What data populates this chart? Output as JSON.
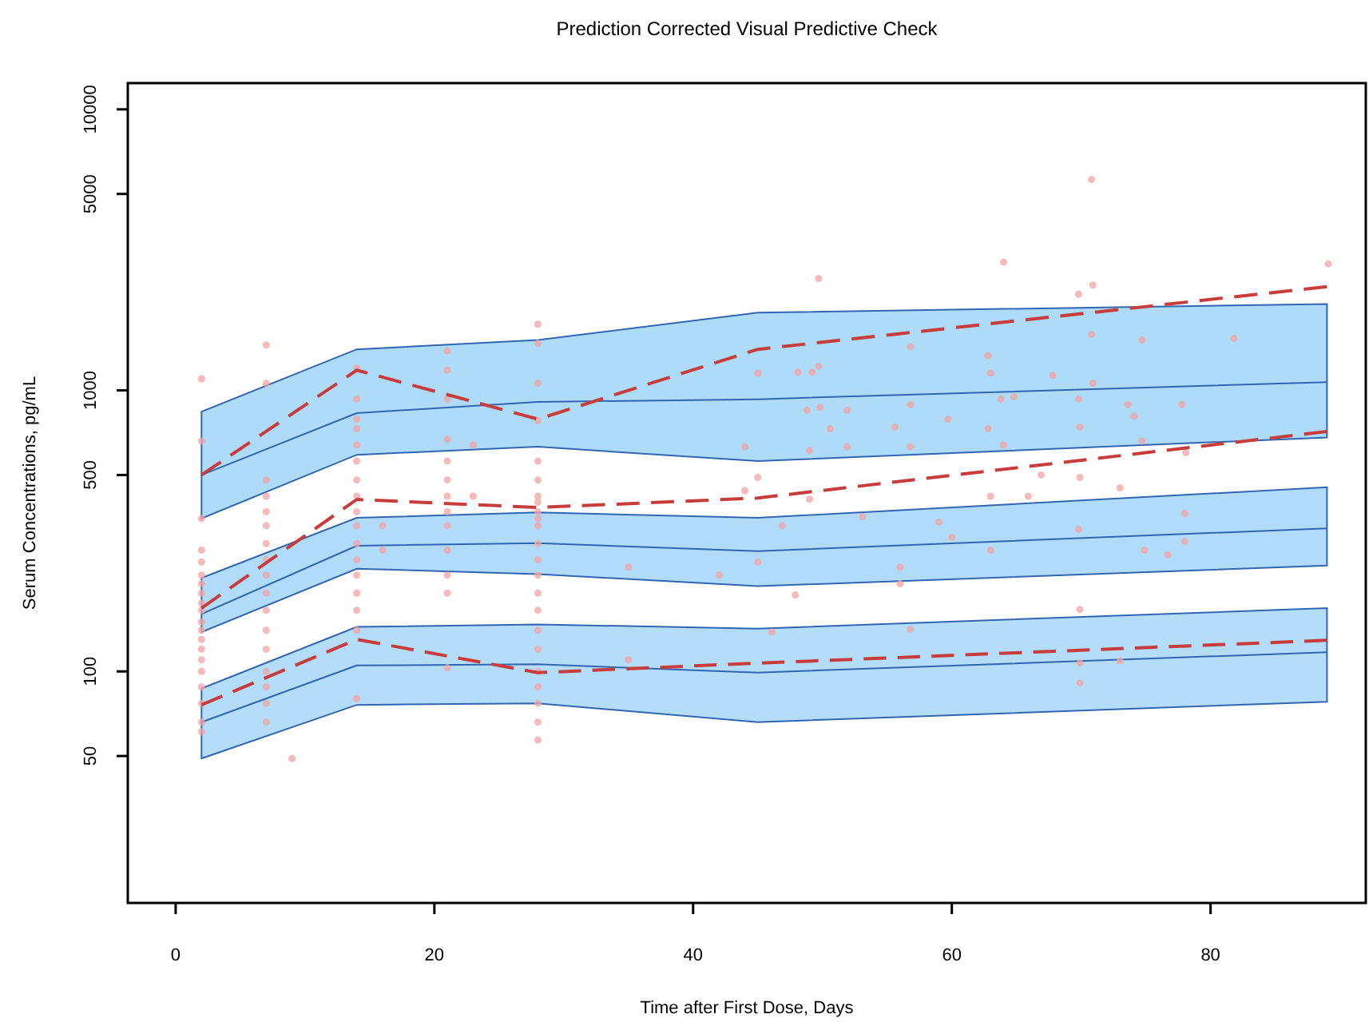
{
  "chart_data": {
    "type": "line",
    "title": "Prediction Corrected Visual Predictive Check",
    "xlabel": "Time after First Dose, Days",
    "ylabel": "Serum Concentrations, pg/mL",
    "log": "y",
    "grid": false,
    "xlim": [
      -3.7,
      92
    ],
    "ylim": [
      15,
      12400
    ],
    "xticks": [
      0,
      20,
      40,
      60,
      80
    ],
    "yticks": [
      50,
      100,
      500,
      1000,
      5000,
      10000
    ],
    "series": [
      {
        "type": "scatter",
        "color": "#f4a3a3",
        "marker": "circle",
        "x": [
          2,
          2,
          2,
          2,
          2,
          2,
          2,
          2,
          2,
          2,
          2,
          2,
          2,
          2,
          2,
          2,
          2,
          2,
          2,
          2,
          7,
          7,
          7,
          7,
          7,
          7,
          7,
          7,
          7,
          7,
          7,
          7,
          7,
          7,
          7,
          7,
          7,
          9,
          14,
          14,
          14,
          14,
          14,
          14,
          14,
          14,
          14,
          14,
          14,
          14,
          14,
          14,
          14,
          14,
          14,
          16,
          16,
          21,
          21,
          21,
          21,
          21,
          21,
          21,
          21,
          21,
          21,
          21,
          21,
          21,
          23,
          23,
          28,
          28,
          28,
          28,
          28,
          28,
          28,
          28,
          28,
          28,
          28,
          28,
          28,
          28,
          28,
          28,
          28,
          28,
          28,
          28,
          28,
          28,
          28,
          35,
          35,
          49.7,
          64,
          70.8,
          69.8,
          70.9,
          89.1,
          56.8,
          62.8,
          45,
          48.1,
          49.2,
          49.7,
          70.8,
          74.7,
          81.8,
          67.8,
          70.9,
          63,
          48.8,
          49.8,
          51.9,
          56.8,
          63.8,
          64.8,
          69.8,
          73.6,
          77.8,
          50.6,
          55.6,
          59.7,
          62.8,
          69.9,
          74.1,
          44,
          49,
          51.9,
          56.8,
          64,
          74.7,
          78.1,
          45,
          44,
          49,
          66.9,
          69.9,
          73,
          63,
          65.9,
          46.9,
          53.1,
          59,
          78,
          60,
          69.8,
          42,
          45,
          47.9,
          56,
          56,
          46.1,
          56.8,
          69.9,
          69.9,
          69.9,
          73,
          63,
          74.9,
          76.7,
          78
        ],
        "values": [
          1100,
          660,
          350,
          270,
          245,
          220,
          205,
          190,
          175,
          165,
          150,
          140,
          130,
          120,
          110,
          100,
          88,
          77,
          66,
          61,
          1450,
          1060,
          480,
          420,
          370,
          330,
          285,
          250,
          220,
          190,
          165,
          140,
          120,
          100,
          88,
          77,
          66,
          49,
          1200,
          930,
          790,
          730,
          640,
          560,
          480,
          420,
          370,
          330,
          285,
          250,
          220,
          190,
          165,
          140,
          80,
          330,
          270,
          1380,
          1180,
          930,
          670,
          560,
          480,
          420,
          370,
          330,
          270,
          220,
          190,
          103,
          640,
          420,
          1720,
          1470,
          1060,
          780,
          560,
          480,
          420,
          400,
          370,
          350,
          330,
          285,
          250,
          220,
          190,
          165,
          140,
          120,
          100,
          88,
          77,
          66,
          57,
          235,
          110,
          2500,
          2860,
          5630,
          2200,
          2370,
          2820,
          1430,
          1330,
          1150,
          1160,
          1160,
          1220,
          1580,
          1510,
          1530,
          1130,
          1060,
          1150,
          850,
          870,
          850,
          890,
          930,
          950,
          930,
          890,
          890,
          730,
          740,
          790,
          730,
          740,
          810,
          630,
          610,
          630,
          630,
          640,
          660,
          600,
          490,
          440,
          410,
          500,
          490,
          450,
          420,
          420,
          330,
          355,
          340,
          365,
          300,
          320,
          220,
          245,
          187,
          235,
          205,
          138,
          141,
          166,
          107,
          91,
          109,
          270,
          270,
          260,
          290
        ]
      },
      {
        "color": "#3366b0",
        "line_style": "solid",
        "marker": "none",
        "x": [
          2,
          14,
          28,
          45,
          89
        ],
        "values": [
          500,
          830,
          910,
          930,
          1070
        ],
        "lower": [
          350,
          590,
          630,
          560,
          680
        ],
        "upper": [
          840,
          1400,
          1510,
          1890,
          2030
        ]
      },
      {
        "color": "#3366b0",
        "line_style": "solid",
        "marker": "none",
        "x": [
          2,
          14,
          28,
          45,
          89
        ],
        "values": [
          160,
          280,
          286,
          268,
          323
        ],
        "lower": [
          138,
          232,
          222,
          201,
          238
        ],
        "upper": [
          215,
          352,
          368,
          352,
          452
        ]
      },
      {
        "color": "#3366b0",
        "line_style": "solid",
        "marker": "none",
        "x": [
          2,
          14,
          28,
          45,
          89
        ],
        "values": [
          66,
          105,
          106,
          99,
          117
        ],
        "lower": [
          49,
          76,
          77,
          66,
          78
        ],
        "upper": [
          87,
          144,
          147,
          142,
          168
        ]
      },
      {
        "color": "#c83c3c",
        "line_style": "dashed",
        "marker": "none",
        "x": [
          2,
          14,
          28,
          45,
          89
        ],
        "values": [
          500,
          1180,
          790,
          1400,
          2340
        ]
      },
      {
        "color": "#c83c3c",
        "line_style": "dashed",
        "marker": "none",
        "x": [
          2,
          14,
          28,
          45,
          89
        ],
        "values": [
          168,
          409,
          383,
          414,
          714
        ]
      },
      {
        "color": "#c83c3c",
        "line_style": "dashed",
        "marker": "none",
        "x": [
          2,
          14,
          28,
          45,
          89
        ],
        "values": [
          76,
          130,
          99,
          107,
          129
        ]
      }
    ]
  }
}
